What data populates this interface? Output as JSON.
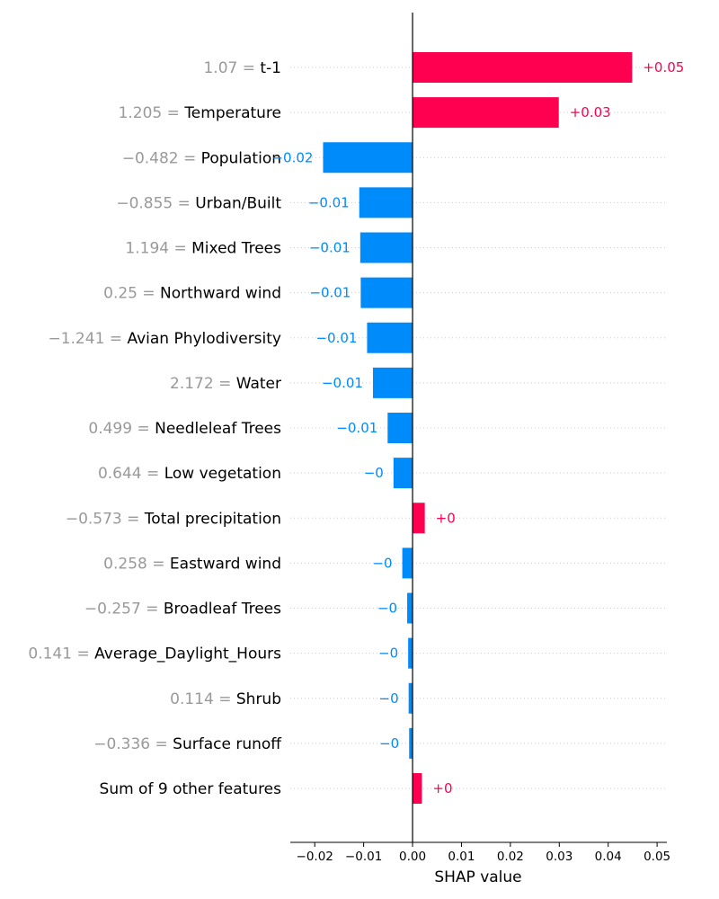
{
  "chart_data": {
    "type": "bar",
    "orientation": "horizontal",
    "xlabel": "SHAP value",
    "xlim": [
      -0.025,
      0.052
    ],
    "xticks": [
      {
        "value": -0.02,
        "label": "−0.02"
      },
      {
        "value": -0.01,
        "label": "−0.01"
      },
      {
        "value": 0.0,
        "label": "0.00"
      },
      {
        "value": 0.01,
        "label": "0.01"
      },
      {
        "value": 0.02,
        "label": "0.02"
      },
      {
        "value": 0.03,
        "label": "0.03"
      },
      {
        "value": 0.04,
        "label": "0.04"
      },
      {
        "value": 0.05,
        "label": "0.05"
      }
    ],
    "colors": {
      "positive": "#ff0051",
      "negative": "#008bfb",
      "feature_value": "#999999",
      "feature_name": "#000000",
      "axis": "#000000",
      "grid": "#cccccc"
    },
    "features": [
      {
        "feature_value": "1.07 = ",
        "name": "t-1",
        "shap": 0.0449,
        "label": "+0.05"
      },
      {
        "feature_value": "1.205 = ",
        "name": "Temperature",
        "shap": 0.0299,
        "label": "+0.03"
      },
      {
        "feature_value": "−0.482 = ",
        "name": "Population",
        "shap": -0.0183,
        "label": "−0.02"
      },
      {
        "feature_value": "−0.855 = ",
        "name": "Urban/Built",
        "shap": -0.0109,
        "label": "−0.01"
      },
      {
        "feature_value": "1.194 = ",
        "name": "Mixed Trees",
        "shap": -0.0107,
        "label": "−0.01"
      },
      {
        "feature_value": "0.25 = ",
        "name": "Northward wind",
        "shap": -0.0106,
        "label": "−0.01"
      },
      {
        "feature_value": "−1.241 = ",
        "name": "Avian Phylodiversity",
        "shap": -0.0093,
        "label": "−0.01"
      },
      {
        "feature_value": "2.172 = ",
        "name": "Water",
        "shap": -0.0081,
        "label": "−0.01"
      },
      {
        "feature_value": "0.499 = ",
        "name": "Needleleaf Trees",
        "shap": -0.0051,
        "label": "−0.01"
      },
      {
        "feature_value": "0.644 = ",
        "name": "Low vegetation",
        "shap": -0.0039,
        "label": "−0"
      },
      {
        "feature_value": "−0.573 = ",
        "name": "Total precipitation",
        "shap": 0.0025,
        "label": "+0"
      },
      {
        "feature_value": "0.258 = ",
        "name": "Eastward wind",
        "shap": -0.0021,
        "label": "−0"
      },
      {
        "feature_value": "−0.257 = ",
        "name": "Broadleaf Trees",
        "shap": -0.0011,
        "label": "−0"
      },
      {
        "feature_value": "0.141 = ",
        "name": "Average_Daylight_Hours",
        "shap": -0.0009,
        "label": "−0"
      },
      {
        "feature_value": "0.114 = ",
        "name": "Shrub",
        "shap": -0.0008,
        "label": "−0"
      },
      {
        "feature_value": "−0.336 = ",
        "name": "Surface runoff",
        "shap": -0.0007,
        "label": "−0"
      },
      {
        "feature_value": "",
        "name": "Sum of 9 other features",
        "shap": 0.0019,
        "label": "+0"
      }
    ]
  }
}
